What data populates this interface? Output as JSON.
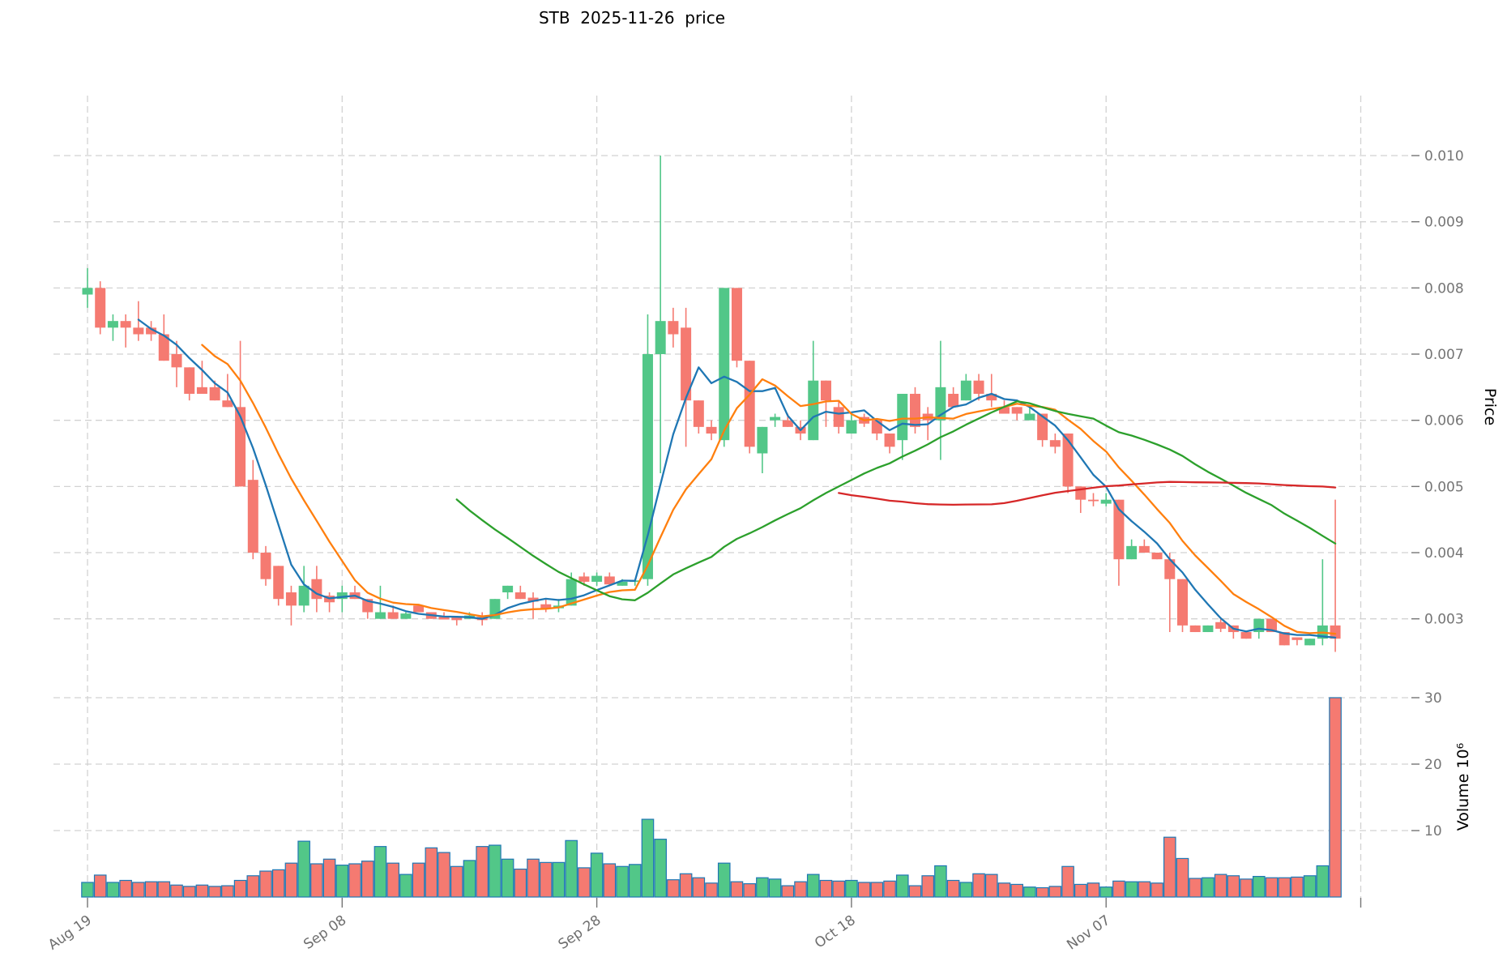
{
  "chart_title": "STB  2025-11-26  price",
  "price_axis_label": "Price",
  "volume_axis_label": "Volume 10⁶",
  "colors": {
    "up": "#52c788",
    "down": "#f57a71",
    "volume_bar_edge": "#1f77b4",
    "ma_blue": "#1f77b4",
    "ma_orange": "#ff7f0e",
    "ma_green": "#2ca02c",
    "ma_red": "#d62728",
    "grid": "#d2d2d2",
    "tick_text": "#757575",
    "background": "#ffffff"
  },
  "chart_data": {
    "type": "candlestick",
    "title": "STB  2025-11-26  price",
    "legend_position": "none",
    "grid": "dashed",
    "x_tick_labels": [
      "Aug 19",
      "Sep 08",
      "Sep 28",
      "Oct 18",
      "Nov 07"
    ],
    "x_tick_indices": [
      0,
      20,
      40,
      60,
      80
    ],
    "right_edge_gridline_index": 100,
    "price_ticks": [
      0.003,
      0.004,
      0.005,
      0.006,
      0.007,
      0.008,
      0.009,
      0.01
    ],
    "price_range": [
      0.0024,
      0.0109
    ],
    "volume_ticks": [
      10,
      20,
      30
    ],
    "volume_unit": "10^6",
    "volume_range_millions": [
      0,
      32.5
    ],
    "moving_averages": [
      {
        "window": 5,
        "color": "#1f77b4"
      },
      {
        "window": 10,
        "color": "#ff7f0e"
      },
      {
        "window": 30,
        "color": "#2ca02c"
      },
      {
        "window": 60,
        "color": "#d62728"
      }
    ],
    "ma_note": "lines are simple moving averages of close",
    "columns": [
      "date",
      "open",
      "high",
      "low",
      "close",
      "volume_millions"
    ],
    "candles": [
      [
        "2025-08-19",
        0.0079,
        0.0083,
        0.0077,
        0.008,
        2.2
      ],
      [
        "2025-08-20",
        0.008,
        0.0081,
        0.0073,
        0.0074,
        3.3
      ],
      [
        "2025-08-21",
        0.0074,
        0.0076,
        0.0072,
        0.0075,
        2.2
      ],
      [
        "2025-08-22",
        0.0075,
        0.0076,
        0.0071,
        0.0074,
        2.5
      ],
      [
        "2025-08-23",
        0.0074,
        0.0078,
        0.0072,
        0.0073,
        2.2
      ],
      [
        "2025-08-24",
        0.0074,
        0.0075,
        0.0072,
        0.0073,
        2.3
      ],
      [
        "2025-08-25",
        0.0073,
        0.0076,
        0.0069,
        0.0069,
        2.3
      ],
      [
        "2025-08-26",
        0.007,
        0.0072,
        0.0065,
        0.0068,
        1.8
      ],
      [
        "2025-08-27",
        0.0068,
        0.0068,
        0.0063,
        0.0064,
        1.6
      ],
      [
        "2025-08-28",
        0.0065,
        0.0069,
        0.0064,
        0.0064,
        1.8
      ],
      [
        "2025-08-29",
        0.0065,
        0.0066,
        0.0063,
        0.0063,
        1.6
      ],
      [
        "2025-08-30",
        0.0063,
        0.0067,
        0.0062,
        0.0062,
        1.7
      ],
      [
        "2025-08-31",
        0.0062,
        0.0072,
        0.005,
        0.005,
        2.5
      ],
      [
        "2025-09-01",
        0.0051,
        0.0054,
        0.0039,
        0.004,
        3.2
      ],
      [
        "2025-09-02",
        0.004,
        0.0041,
        0.0035,
        0.0036,
        3.9
      ],
      [
        "2025-09-03",
        0.0038,
        0.0038,
        0.0032,
        0.0033,
        4.1
      ],
      [
        "2025-09-04",
        0.0034,
        0.0035,
        0.0029,
        0.0032,
        5.1
      ],
      [
        "2025-09-05",
        0.0032,
        0.0038,
        0.0031,
        0.0035,
        8.4
      ],
      [
        "2025-09-06",
        0.0036,
        0.0038,
        0.0031,
        0.0033,
        5.0
      ],
      [
        "2025-09-07",
        0.00335,
        0.0034,
        0.0031,
        0.00325,
        5.7
      ],
      [
        "2025-09-08",
        0.0033,
        0.0035,
        0.0031,
        0.0034,
        4.8
      ],
      [
        "2025-09-09",
        0.0034,
        0.0035,
        0.0033,
        0.0033,
        5.0
      ],
      [
        "2025-09-10",
        0.0033,
        0.0033,
        0.003,
        0.0031,
        5.4
      ],
      [
        "2025-09-11",
        0.003,
        0.0035,
        0.003,
        0.0031,
        7.6
      ],
      [
        "2025-09-12",
        0.0031,
        0.0032,
        0.003,
        0.003,
        5.1
      ],
      [
        "2025-09-13",
        0.003,
        0.0031,
        0.003,
        0.00308,
        3.4
      ],
      [
        "2025-09-14",
        0.0032,
        0.0032,
        0.0031,
        0.0031,
        5.1
      ],
      [
        "2025-09-15",
        0.0031,
        0.0031,
        0.003,
        0.003,
        7.4
      ],
      [
        "2025-09-16",
        0.00303,
        0.0031,
        0.003,
        0.00299,
        6.7
      ],
      [
        "2025-09-17",
        0.00302,
        0.003,
        0.0029,
        0.00298,
        4.6
      ],
      [
        "2025-09-18",
        0.003,
        0.0031,
        0.003,
        0.00305,
        5.5
      ],
      [
        "2025-09-19",
        0.00303,
        0.0031,
        0.0029,
        0.00298,
        7.6
      ],
      [
        "2025-09-20",
        0.003,
        0.0033,
        0.003,
        0.0033,
        7.8
      ],
      [
        "2025-09-21",
        0.0034,
        0.0035,
        0.0033,
        0.0035,
        5.7
      ],
      [
        "2025-09-22",
        0.0034,
        0.0035,
        0.0033,
        0.0033,
        4.2
      ],
      [
        "2025-09-23",
        0.00332,
        0.0034,
        0.003,
        0.00326,
        5.7
      ],
      [
        "2025-09-24",
        0.00322,
        0.0033,
        0.0031,
        0.00316,
        5.2
      ],
      [
        "2025-09-25",
        0.00316,
        0.0033,
        0.0031,
        0.0032,
        5.2
      ],
      [
        "2025-09-26",
        0.0032,
        0.0037,
        0.0032,
        0.0036,
        8.5
      ],
      [
        "2025-09-27",
        0.00364,
        0.0037,
        0.0035,
        0.00356,
        4.4
      ],
      [
        "2025-09-28",
        0.00356,
        0.0037,
        0.0035,
        0.00365,
        6.6
      ],
      [
        "2025-09-29",
        0.00364,
        0.0037,
        0.0035,
        0.00352,
        5.0
      ],
      [
        "2025-09-30",
        0.0035,
        0.0036,
        0.0035,
        0.00356,
        4.6
      ],
      [
        "2025-10-01",
        0.00356,
        0.0036,
        0.0035,
        0.00358,
        4.9
      ],
      [
        "2025-10-02",
        0.0036,
        0.0076,
        0.0035,
        0.007,
        11.7
      ],
      [
        "2025-10-03",
        0.007,
        0.01,
        0.0052,
        0.0075,
        8.7
      ],
      [
        "2025-10-04",
        0.0075,
        0.0077,
        0.0071,
        0.0073,
        2.6
      ],
      [
        "2025-10-05",
        0.0074,
        0.0077,
        0.0056,
        0.0063,
        3.5
      ],
      [
        "2025-10-06",
        0.0063,
        0.0063,
        0.0058,
        0.0059,
        2.9
      ],
      [
        "2025-10-07",
        0.0059,
        0.006,
        0.0057,
        0.0058,
        2.1
      ],
      [
        "2025-10-08",
        0.0057,
        0.008,
        0.0056,
        0.008,
        5.1
      ],
      [
        "2025-10-09",
        0.008,
        0.008,
        0.0068,
        0.0069,
        2.3
      ],
      [
        "2025-10-10",
        0.0069,
        0.0069,
        0.0055,
        0.0056,
        2.0
      ],
      [
        "2025-10-11",
        0.0055,
        0.0059,
        0.0052,
        0.0059,
        2.9
      ],
      [
        "2025-10-12",
        0.006,
        0.0061,
        0.0059,
        0.00605,
        2.7
      ],
      [
        "2025-10-13",
        0.006,
        0.0061,
        0.0059,
        0.0059,
        1.7
      ],
      [
        "2025-10-14",
        0.0059,
        0.006,
        0.0057,
        0.0058,
        2.3
      ],
      [
        "2025-10-15",
        0.0057,
        0.0072,
        0.0057,
        0.0066,
        3.4
      ],
      [
        "2025-10-16",
        0.0066,
        0.0066,
        0.0059,
        0.0063,
        2.5
      ],
      [
        "2025-10-17",
        0.0062,
        0.0063,
        0.0058,
        0.0059,
        2.4
      ],
      [
        "2025-10-18",
        0.0058,
        0.0061,
        0.0058,
        0.006,
        2.5
      ],
      [
        "2025-10-19",
        0.00605,
        0.0061,
        0.0059,
        0.00595,
        2.2
      ],
      [
        "2025-10-20",
        0.006,
        0.006,
        0.0057,
        0.0058,
        2.2
      ],
      [
        "2025-10-21",
        0.0058,
        0.0058,
        0.0055,
        0.0056,
        2.4
      ],
      [
        "2025-10-22",
        0.0057,
        0.0064,
        0.0054,
        0.0064,
        3.3
      ],
      [
        "2025-10-23",
        0.0064,
        0.0065,
        0.0058,
        0.0059,
        1.7
      ],
      [
        "2025-10-24",
        0.0061,
        0.0062,
        0.0057,
        0.006,
        3.2
      ],
      [
        "2025-10-25",
        0.006,
        0.0072,
        0.0054,
        0.0065,
        4.7
      ],
      [
        "2025-10-26",
        0.0064,
        0.0065,
        0.0062,
        0.0062,
        2.5
      ],
      [
        "2025-10-27",
        0.0063,
        0.0067,
        0.0063,
        0.0066,
        2.2
      ],
      [
        "2025-10-28",
        0.0066,
        0.0067,
        0.0063,
        0.0064,
        3.5
      ],
      [
        "2025-10-29",
        0.0064,
        0.0067,
        0.0062,
        0.0063,
        3.4
      ],
      [
        "2025-10-30",
        0.0062,
        0.0063,
        0.0061,
        0.0061,
        2.1
      ],
      [
        "2025-10-31",
        0.0062,
        0.0062,
        0.006,
        0.0061,
        1.9
      ],
      [
        "2025-11-01",
        0.006,
        0.0062,
        0.006,
        0.0061,
        1.5
      ],
      [
        "2025-11-02",
        0.0061,
        0.0061,
        0.0056,
        0.0057,
        1.4
      ],
      [
        "2025-11-03",
        0.0057,
        0.0058,
        0.0055,
        0.0056,
        1.6
      ],
      [
        "2025-11-04",
        0.0058,
        0.0058,
        0.0049,
        0.005,
        4.6
      ],
      [
        "2025-11-05",
        0.005,
        0.005,
        0.0046,
        0.0048,
        1.9
      ],
      [
        "2025-11-06",
        0.0048,
        0.0049,
        0.0047,
        0.00478,
        2.1
      ],
      [
        "2025-11-07",
        0.00474,
        0.0049,
        0.0047,
        0.0048,
        1.5
      ],
      [
        "2025-11-08",
        0.0048,
        0.0048,
        0.0035,
        0.0039,
        2.4
      ],
      [
        "2025-11-09",
        0.0039,
        0.0042,
        0.0039,
        0.0041,
        2.3
      ],
      [
        "2025-11-10",
        0.0041,
        0.0042,
        0.004,
        0.004,
        2.3
      ],
      [
        "2025-11-11",
        0.004,
        0.004,
        0.0039,
        0.0039,
        2.1
      ],
      [
        "2025-11-12",
        0.0039,
        0.004,
        0.0028,
        0.0036,
        9.0
      ],
      [
        "2025-11-13",
        0.0036,
        0.0036,
        0.0028,
        0.0029,
        5.8
      ],
      [
        "2025-11-14",
        0.0029,
        0.0029,
        0.0028,
        0.0028,
        2.8
      ],
      [
        "2025-11-15",
        0.0028,
        0.0029,
        0.0028,
        0.0029,
        2.9
      ],
      [
        "2025-11-16",
        0.00295,
        0.003,
        0.0028,
        0.00285,
        3.4
      ],
      [
        "2025-11-17",
        0.0029,
        0.0029,
        0.0027,
        0.0028,
        3.2
      ],
      [
        "2025-11-18",
        0.0028,
        0.0028,
        0.0027,
        0.0027,
        2.7
      ],
      [
        "2025-11-19",
        0.0028,
        0.003,
        0.0027,
        0.003,
        3.1
      ],
      [
        "2025-11-20",
        0.003,
        0.003,
        0.0028,
        0.0028,
        2.9
      ],
      [
        "2025-11-21",
        0.0028,
        0.0028,
        0.0026,
        0.0026,
        2.9
      ],
      [
        "2025-11-22",
        0.00272,
        0.0027,
        0.0026,
        0.00268,
        3.0
      ],
      [
        "2025-11-23",
        0.0026,
        0.0027,
        0.0026,
        0.0027,
        3.2
      ],
      [
        "2025-11-24",
        0.0027,
        0.0039,
        0.0026,
        0.0029,
        4.7
      ],
      [
        "2025-11-25",
        0.0029,
        0.0048,
        0.0025,
        0.0027,
        30.0
      ]
    ]
  }
}
